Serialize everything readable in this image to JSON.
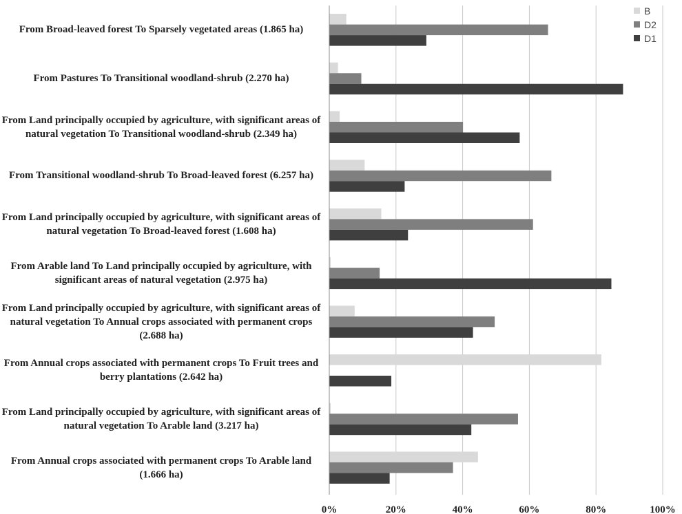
{
  "chart_data": {
    "type": "bar",
    "orientation": "horizontal",
    "categories": [
      "From Broad-leaved forest To Sparsely vegetated areas (1.865 ha)",
      "From Pastures To Transitional woodland-shrub (2.270 ha)",
      "From Land principally occupied by agriculture, with significant areas of natural vegetation To Transitional woodland-shrub (2.349 ha)",
      "From Transitional woodland-shrub To Broad-leaved forest (6.257 ha)",
      "From Land principally occupied by agriculture, with significant areas of natural vegetation To Broad-leaved forest (1.608 ha)",
      "From Arable land To Land principally occupied by agriculture, with significant areas of natural vegetation (2.975 ha)",
      "From Land principally occupied by agriculture, with significant areas of natural vegetation To Annual crops associated with permanent crops (2.688 ha)",
      "From Annual crops associated with permanent crops To Fruit trees and berry plantations (2.642 ha)",
      "From Land principally occupied by agriculture, with significant areas of natural vegetation To Arable land (3.217 ha)",
      "From Annual crops associated with permanent crops To Arable land (1.666 ha)"
    ],
    "series": [
      {
        "name": "B",
        "color": "#d9d9d9",
        "values": [
          5,
          2.5,
          3,
          10.5,
          15.5,
          0.3,
          7.5,
          81.5,
          0.3,
          44.5
        ]
      },
      {
        "name": "D2",
        "color": "#7f7f7f",
        "values": [
          65.5,
          9.5,
          40,
          66.5,
          61,
          15,
          49.5,
          0,
          56.5,
          37
        ]
      },
      {
        "name": "D1",
        "color": "#3f3f3f",
        "values": [
          29,
          88,
          57,
          22.5,
          23.5,
          84.5,
          43,
          18.5,
          42.5,
          18
        ]
      }
    ],
    "xlim": [
      0,
      100
    ],
    "xticks": [
      "0%",
      "20%",
      "40%",
      "60%",
      "80%",
      "100%"
    ],
    "legend_position": "top-right",
    "grid": "vertical",
    "title": "",
    "xlabel": "",
    "ylabel": ""
  }
}
